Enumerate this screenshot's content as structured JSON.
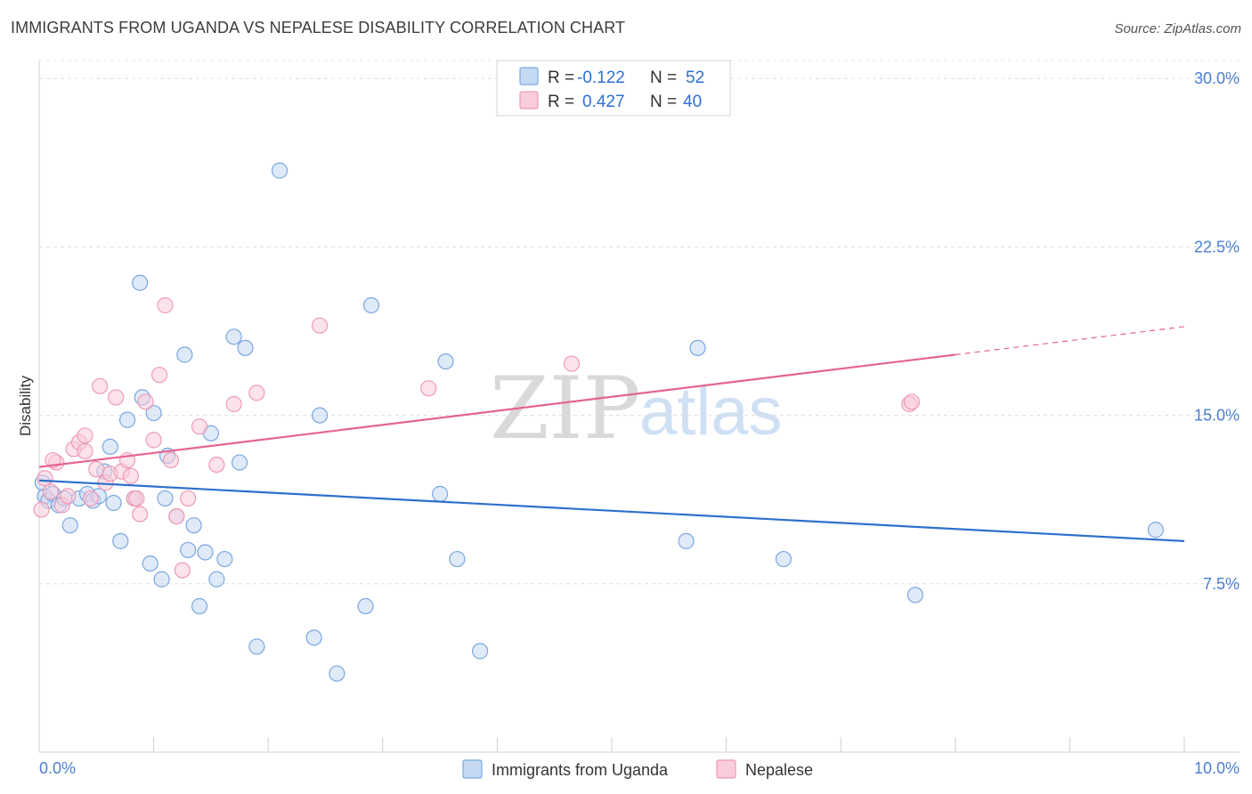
{
  "title": "IMMIGRANTS FROM UGANDA VS NEPALESE DISABILITY CORRELATION CHART",
  "source": "Source: ZipAtlas.com",
  "chart_data": {
    "type": "scatter",
    "title": "IMMIGRANTS FROM UGANDA VS NEPALESE DISABILITY CORRELATION CHART",
    "ylabel": "Disability",
    "xlabel": "",
    "xlim": [
      0,
      10
    ],
    "ylim": [
      0,
      30.8
    ],
    "x_tick_labels": [
      "0.0%",
      "10.0%"
    ],
    "y_ticks": [
      7.5,
      15.0,
      22.5,
      30.0
    ],
    "y_tick_labels": [
      "7.5%",
      "15.0%",
      "22.5%",
      "30.0%"
    ],
    "legend": [
      {
        "label_r": "R = ",
        "r": "-0.122",
        "label_n": "N = ",
        "n": "52"
      },
      {
        "label_r": "R = ",
        "r": "0.427",
        "label_n": "N = ",
        "n": "40"
      }
    ],
    "watermark": {
      "zip": "ZIP",
      "atlas": "atlas"
    },
    "series": [
      {
        "name": "Immigrants from Uganda",
        "color": "#7aa7e0",
        "fill": "#c5d9f3",
        "trend": {
          "x0": 0,
          "y0": 12.1,
          "x1": 10,
          "y1": 9.4,
          "color": "#2e70cc"
        },
        "points": [
          [
            0.05,
            11.4
          ],
          [
            0.08,
            11.2
          ],
          [
            0.12,
            11.5
          ],
          [
            0.17,
            11.0
          ],
          [
            0.22,
            11.3
          ],
          [
            0.27,
            10.1
          ],
          [
            0.35,
            11.3
          ],
          [
            0.42,
            11.5
          ],
          [
            0.47,
            11.2
          ],
          [
            0.52,
            11.4
          ],
          [
            0.57,
            12.5
          ],
          [
            0.62,
            13.6
          ],
          [
            0.65,
            11.1
          ],
          [
            0.71,
            9.4
          ],
          [
            0.77,
            14.8
          ],
          [
            0.83,
            11.3
          ],
          [
            0.88,
            20.9
          ],
          [
            0.9,
            15.8
          ],
          [
            0.97,
            8.4
          ],
          [
            1.0,
            15.1
          ],
          [
            1.07,
            7.7
          ],
          [
            1.1,
            11.3
          ],
          [
            1.12,
            13.2
          ],
          [
            1.2,
            10.5
          ],
          [
            1.27,
            17.7
          ],
          [
            1.3,
            9.0
          ],
          [
            1.35,
            10.1
          ],
          [
            1.4,
            6.5
          ],
          [
            1.45,
            8.9
          ],
          [
            1.5,
            14.2
          ],
          [
            1.55,
            7.7
          ],
          [
            1.62,
            8.6
          ],
          [
            1.7,
            18.5
          ],
          [
            1.75,
            12.9
          ],
          [
            1.8,
            18.0
          ],
          [
            1.9,
            4.7
          ],
          [
            2.1,
            25.9
          ],
          [
            2.4,
            5.1
          ],
          [
            2.45,
            15.0
          ],
          [
            2.6,
            3.5
          ],
          [
            2.85,
            6.5
          ],
          [
            2.9,
            19.9
          ],
          [
            3.5,
            11.5
          ],
          [
            3.55,
            17.4
          ],
          [
            3.65,
            8.6
          ],
          [
            3.85,
            4.5
          ],
          [
            5.65,
            9.4
          ],
          [
            5.75,
            18.0
          ],
          [
            6.5,
            8.6
          ],
          [
            7.65,
            7.0
          ],
          [
            9.75,
            9.9
          ],
          [
            0.03,
            12.0
          ]
        ]
      },
      {
        "name": "Nepalese",
        "color": "#ee9ab5",
        "fill": "#f9ccda",
        "trend": {
          "x0": 0,
          "y0": 12.7,
          "x1": 8.0,
          "y1": 17.7,
          "x_dash_end": 10,
          "y_dash_end": 18.95,
          "color": "#e5648e"
        },
        "points": [
          [
            0.02,
            10.8
          ],
          [
            0.05,
            12.2
          ],
          [
            0.1,
            11.6
          ],
          [
            0.15,
            12.9
          ],
          [
            0.2,
            11.0
          ],
          [
            0.25,
            11.4
          ],
          [
            0.3,
            13.5
          ],
          [
            0.35,
            13.8
          ],
          [
            0.4,
            14.1
          ],
          [
            0.45,
            11.3
          ],
          [
            0.5,
            12.6
          ],
          [
            0.53,
            16.3
          ],
          [
            0.58,
            12.0
          ],
          [
            0.62,
            12.4
          ],
          [
            0.67,
            15.8
          ],
          [
            0.72,
            12.5
          ],
          [
            0.77,
            13.0
          ],
          [
            0.8,
            12.3
          ],
          [
            0.83,
            11.3
          ],
          [
            0.85,
            11.3
          ],
          [
            0.88,
            10.6
          ],
          [
            0.93,
            15.6
          ],
          [
            1.0,
            13.9
          ],
          [
            1.05,
            16.8
          ],
          [
            1.1,
            19.9
          ],
          [
            1.15,
            13.0
          ],
          [
            1.2,
            10.5
          ],
          [
            1.25,
            8.1
          ],
          [
            1.3,
            11.3
          ],
          [
            1.4,
            14.5
          ],
          [
            1.55,
            12.8
          ],
          [
            1.7,
            15.5
          ],
          [
            1.9,
            16.0
          ],
          [
            2.45,
            19.0
          ],
          [
            3.4,
            16.2
          ],
          [
            4.65,
            17.3
          ],
          [
            7.6,
            15.5
          ],
          [
            7.62,
            15.6
          ],
          [
            0.12,
            13.0
          ],
          [
            0.4,
            13.4
          ]
        ]
      }
    ]
  },
  "bottom_legend": [
    {
      "label": "Immigrants from Uganda"
    },
    {
      "label": "Nepalese"
    }
  ]
}
